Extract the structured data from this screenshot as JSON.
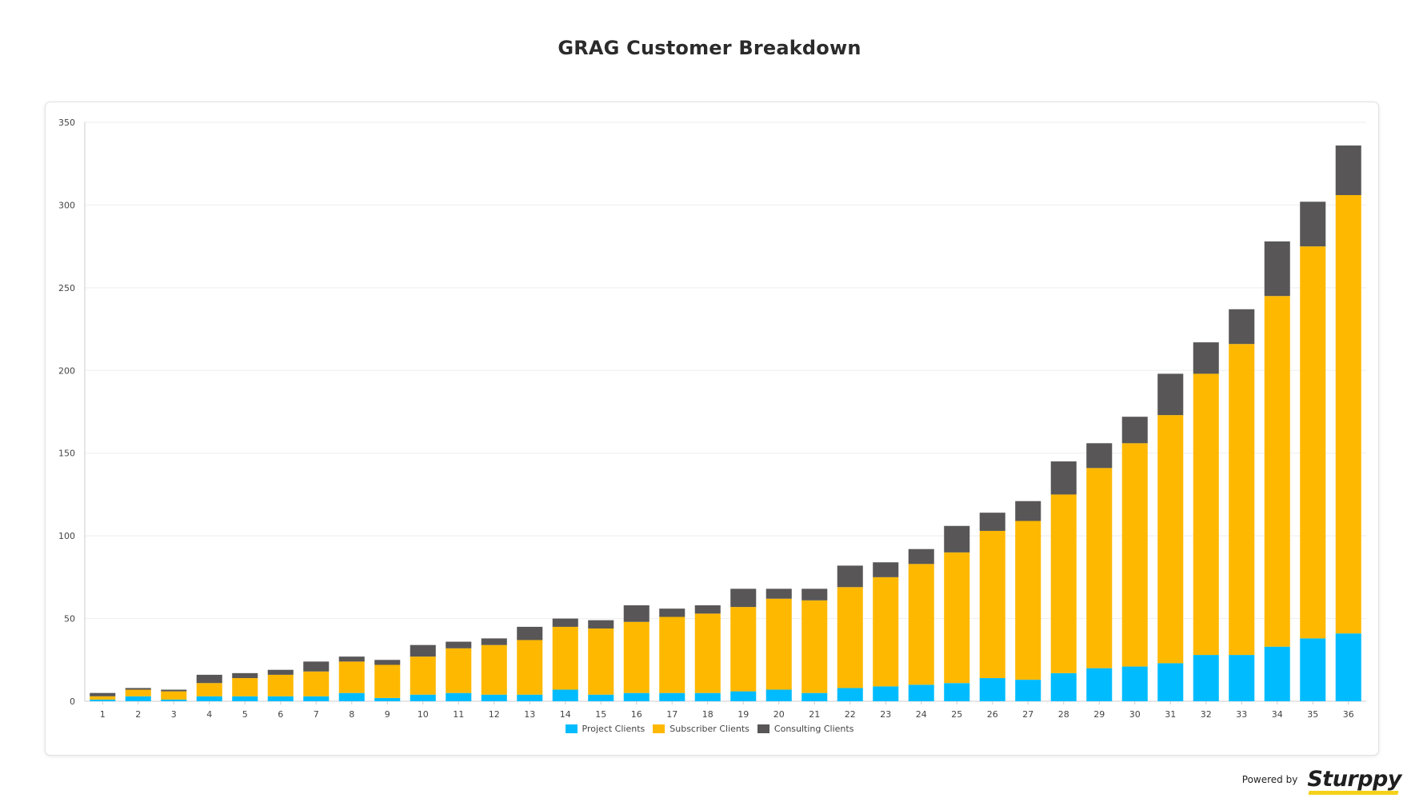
{
  "page": {
    "footer_powered": "Powered by",
    "brand_name": "Sturppy"
  },
  "colors": {
    "project": "#00bcff",
    "subscriber": "#ffb800",
    "consulting": "#585656",
    "grid": "#eeeeee",
    "axis": "#cccccc",
    "tick_text": "#444444",
    "brand_accent": "#f4d21a"
  },
  "chart_data": {
    "type": "bar",
    "stacked": true,
    "title": "GRAG Customer Breakdown",
    "xlabel": "",
    "ylabel": "",
    "ylim": [
      0,
      350
    ],
    "yticks": [
      0,
      50,
      100,
      150,
      200,
      250,
      300,
      350
    ],
    "grid": true,
    "legend_position": "bottom",
    "categories": [
      "1",
      "2",
      "3",
      "4",
      "5",
      "6",
      "7",
      "8",
      "9",
      "10",
      "11",
      "12",
      "13",
      "14",
      "15",
      "16",
      "17",
      "18",
      "19",
      "20",
      "21",
      "22",
      "23",
      "24",
      "25",
      "26",
      "27",
      "28",
      "29",
      "30",
      "31",
      "32",
      "33",
      "34",
      "35",
      "36"
    ],
    "series": [
      {
        "name": "Project Clients",
        "color": "#00bcff",
        "values": [
          1,
          3,
          1,
          3,
          3,
          3,
          3,
          5,
          2,
          4,
          5,
          4,
          4,
          7,
          4,
          5,
          5,
          5,
          6,
          7,
          5,
          8,
          9,
          10,
          11,
          14,
          13,
          17,
          20,
          21,
          23,
          28,
          28,
          33,
          38,
          41
        ]
      },
      {
        "name": "Subscriber Clients",
        "color": "#ffb800",
        "values": [
          2,
          4,
          5,
          8,
          11,
          13,
          15,
          19,
          20,
          23,
          27,
          30,
          33,
          38,
          40,
          43,
          46,
          48,
          51,
          55,
          56,
          61,
          66,
          73,
          79,
          89,
          96,
          108,
          121,
          135,
          150,
          170,
          188,
          212,
          237,
          265
        ]
      },
      {
        "name": "Consulting Clients",
        "color": "#585656",
        "values": [
          2,
          1,
          1,
          5,
          3,
          3,
          6,
          3,
          3,
          7,
          4,
          4,
          8,
          5,
          5,
          10,
          5,
          5,
          11,
          6,
          7,
          13,
          9,
          9,
          16,
          11,
          12,
          20,
          15,
          16,
          25,
          19,
          21,
          33,
          27,
          30
        ]
      }
    ]
  }
}
